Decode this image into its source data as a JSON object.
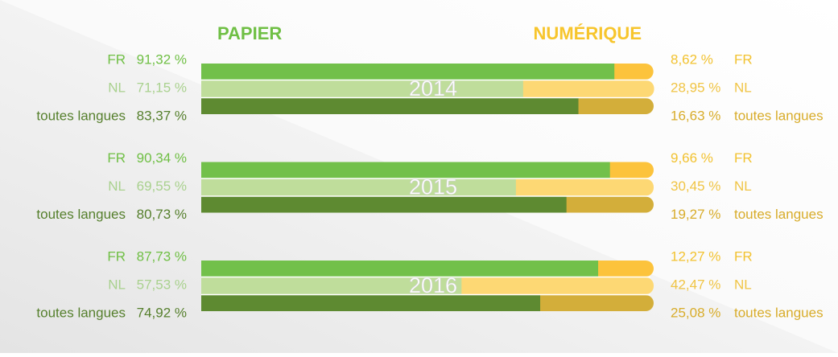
{
  "chart_data": {
    "type": "bar",
    "orientation": "horizontal",
    "stacked": true,
    "xlim": [
      0,
      100
    ],
    "groups": [
      "2014",
      "2015",
      "2016"
    ],
    "categories": [
      "FR",
      "NL",
      "toutes langues"
    ],
    "category_colors": [
      "#6fbf44",
      "#a9d18e",
      "#557f2c"
    ],
    "series": [
      {
        "name": "PAPIER",
        "color": "#6fbf44",
        "colors": [
          "#72c04a",
          "#bfdd9b",
          "#5e8a31"
        ],
        "label_colors": [
          "#6fbf44",
          "#a9d18e",
          "#557f2c"
        ],
        "values": [
          [
            91.32,
            71.15,
            83.37
          ],
          [
            90.34,
            69.55,
            80.73
          ],
          [
            87.73,
            57.53,
            74.92
          ]
        ],
        "value_labels": [
          [
            "91,32 %",
            "71,15 %",
            "83,37 %"
          ],
          [
            "90,34 %",
            "69,55 %",
            "80,73 %"
          ],
          [
            "87,73 %",
            "57,53 %",
            "74,92 %"
          ]
        ]
      },
      {
        "name": "NUMÉRIQUE",
        "color": "#f7c52c",
        "colors": [
          "#fcc33c",
          "#fdd874",
          "#d3ae3a"
        ],
        "label_colors": [
          "#f2c230",
          "#f0c444",
          "#d8ac2a"
        ],
        "values": [
          [
            8.62,
            28.95,
            16.63
          ],
          [
            9.66,
            30.45,
            19.27
          ],
          [
            12.27,
            42.47,
            25.08
          ]
        ],
        "value_labels": [
          [
            "8,62 %",
            "28,95 %",
            "16,63 %"
          ],
          [
            "9,66 %",
            "30,45 %",
            "19,27 %"
          ],
          [
            "12,27 %",
            "42,47 %",
            "25,08 %"
          ]
        ]
      }
    ]
  }
}
